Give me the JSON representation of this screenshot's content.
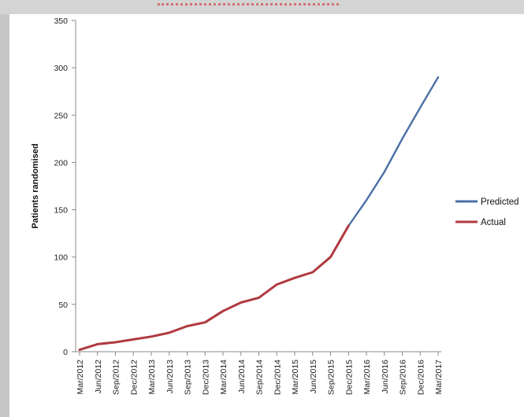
{
  "chart_data": {
    "type": "line",
    "title": "",
    "ylabel": "Patients randomised",
    "xlabel": "",
    "ylim": [
      0,
      350
    ],
    "yticks": [
      0,
      50,
      100,
      150,
      200,
      250,
      300,
      350
    ],
    "grid": false,
    "legend_position": "right",
    "categories": [
      "Mar/2012",
      "Jun/2012",
      "Sep/2012",
      "Dec/2012",
      "Mar/2013",
      "Jun/2013",
      "Sep/2013",
      "Dec/2013",
      "Mar/2014",
      "Jun/2014",
      "Sep/2014",
      "Dec/2014",
      "Mar/2015",
      "Jun/2015",
      "Sep/2015",
      "Dec/2015",
      "Mar/2016",
      "Jun/2016",
      "Sep/2016",
      "Dec/2016",
      "Mar/2017"
    ],
    "series": [
      {
        "name": "Predicted",
        "color": "#4a6fa5",
        "x": [
          "Dec/2015",
          "Mar/2016",
          "Jun/2016",
          "Sep/2016",
          "Dec/2016",
          "Mar/2017"
        ],
        "values": [
          133,
          160,
          190,
          225,
          258,
          290
        ]
      },
      {
        "name": "Actual",
        "color": "#b03a3f",
        "x": [
          "Mar/2012",
          "Jun/2012",
          "Sep/2012",
          "Dec/2012",
          "Mar/2013",
          "Jun/2013",
          "Sep/2013",
          "Dec/2013",
          "Mar/2014",
          "Jun/2014",
          "Sep/2014",
          "Dec/2014",
          "Mar/2015",
          "Jun/2015",
          "Sep/2015",
          "Dec/2015"
        ],
        "values": [
          2,
          8,
          10,
          13,
          16,
          20,
          27,
          31,
          43,
          52,
          57,
          71,
          78,
          84,
          100,
          133
        ]
      }
    ]
  }
}
